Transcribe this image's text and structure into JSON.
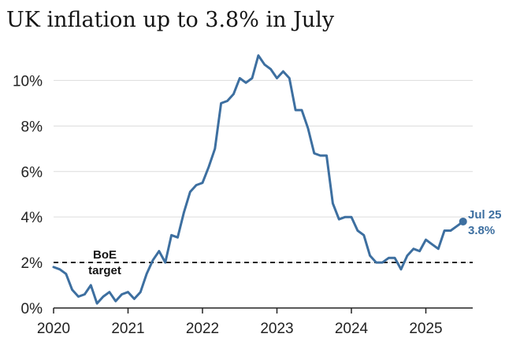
{
  "chart_data": {
    "type": "line",
    "title": "UK inflation up to 3.8% in July",
    "xlabel": "",
    "ylabel": "",
    "x_ticks": [
      "2020",
      "2021",
      "2022",
      "2023",
      "2024",
      "2025"
    ],
    "y_ticks": [
      "0%",
      "2%",
      "4%",
      "6%",
      "8%",
      "10%"
    ],
    "ylim": [
      0,
      11.5
    ],
    "grid": true,
    "series": [
      {
        "color": "#3d6fa0",
        "x": [
          "2020-01",
          "2020-02",
          "2020-03",
          "2020-04",
          "2020-05",
          "2020-06",
          "2020-07",
          "2020-08",
          "2020-09",
          "2020-10",
          "2020-11",
          "2020-12",
          "2021-01",
          "2021-02",
          "2021-03",
          "2021-04",
          "2021-05",
          "2021-06",
          "2021-07",
          "2021-08",
          "2021-09",
          "2021-10",
          "2021-11",
          "2021-12",
          "2022-01",
          "2022-02",
          "2022-03",
          "2022-04",
          "2022-05",
          "2022-06",
          "2022-07",
          "2022-08",
          "2022-09",
          "2022-10",
          "2022-11",
          "2022-12",
          "2023-01",
          "2023-02",
          "2023-03",
          "2023-04",
          "2023-05",
          "2023-06",
          "2023-07",
          "2023-08",
          "2023-09",
          "2023-10",
          "2023-11",
          "2023-12",
          "2024-01",
          "2024-02",
          "2024-03",
          "2024-04",
          "2024-05",
          "2024-06",
          "2024-07",
          "2024-08",
          "2024-09",
          "2024-10",
          "2024-11",
          "2024-12",
          "2025-01",
          "2025-02",
          "2025-03",
          "2025-04",
          "2025-05",
          "2025-06",
          "2025-07"
        ],
        "y": [
          1.8,
          1.7,
          1.5,
          0.8,
          0.5,
          0.6,
          1.0,
          0.2,
          0.5,
          0.7,
          0.3,
          0.6,
          0.7,
          0.4,
          0.7,
          1.5,
          2.1,
          2.5,
          2.0,
          3.2,
          3.1,
          4.2,
          5.1,
          5.4,
          5.5,
          6.2,
          7.0,
          9.0,
          9.1,
          9.4,
          10.1,
          9.9,
          10.1,
          11.1,
          10.7,
          10.5,
          10.1,
          10.4,
          10.1,
          8.7,
          8.7,
          7.9,
          6.8,
          6.7,
          6.7,
          4.6,
          3.9,
          4.0,
          4.0,
          3.4,
          3.2,
          2.3,
          2.0,
          2.0,
          2.2,
          2.2,
          1.7,
          2.3,
          2.6,
          2.5,
          3.0,
          2.8,
          2.6,
          3.4,
          3.4,
          3.6,
          3.8
        ]
      }
    ],
    "reference_line": {
      "value": 2,
      "label_line1": "BoE",
      "label_line2": "target",
      "color": "#111111"
    },
    "end_annotation": {
      "label_line1": "Jul 25",
      "label_line2": "3.8%",
      "value": 3.8,
      "color": "#3d6fa0"
    }
  }
}
